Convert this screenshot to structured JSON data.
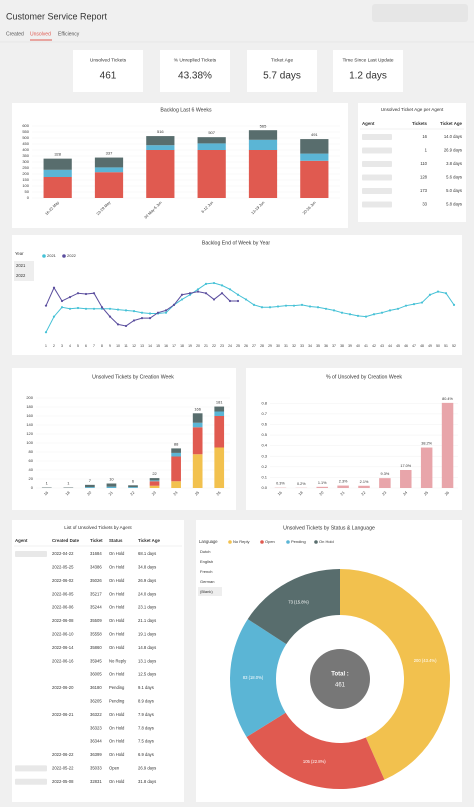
{
  "header": {
    "title": "Customer Service Report",
    "tabs": [
      "Created",
      "Unsolved",
      "Efficiency"
    ]
  },
  "kpis": [
    {
      "label": "Unsolved Tickets",
      "value": 461
    },
    {
      "label": "% Unreplied Tickets",
      "value": "43.38%"
    },
    {
      "label": "Ticket Age",
      "value": "5.7 days"
    },
    {
      "label": "Time Since Last Update",
      "value": "1.2 days"
    }
  ],
  "chart_data": [
    {
      "type": "stacked-bar",
      "title": "Backlog Last 6 Weeks",
      "categories": [
        "16-22 May",
        "23-29 May",
        "30 May-5 Jun",
        "6-12 Jun",
        "13-19 Jun",
        "20-26 Jun"
      ],
      "series": [
        {
          "color": "#e05a50",
          "values": [
            175,
            215,
            400,
            400,
            400,
            310
          ]
        },
        {
          "color": "#5bb5d5",
          "values": [
            60,
            40,
            40,
            55,
            85,
            60
          ]
        },
        {
          "color": "#586d6d",
          "values": [
            93,
            82,
            76,
            52,
            80,
            121
          ]
        }
      ],
      "totals": [
        328,
        337,
        516,
        507,
        565,
        491
      ],
      "ylim": [
        0,
        600
      ],
      "yticks": [
        0,
        50,
        100,
        150,
        200,
        250,
        300,
        350,
        400,
        450,
        500,
        550,
        600
      ],
      "grid": true
    },
    {
      "type": "line",
      "title": "Backlog End of Week by Year",
      "filter": {
        "label": "Year",
        "options": [
          "2021",
          "2022"
        ]
      },
      "categories": [
        "1",
        "2",
        "3",
        "4",
        "5",
        "6",
        "7",
        "8",
        "9",
        "10",
        "11",
        "12",
        "13",
        "14",
        "15",
        "16",
        "17",
        "18",
        "19",
        "20",
        "21",
        "22",
        "23",
        "24",
        "25",
        "26",
        "27",
        "28",
        "29",
        "30",
        "31",
        "32",
        "33",
        "34",
        "35",
        "36",
        "37",
        "38",
        "39",
        "40",
        "41",
        "42",
        "43",
        "44",
        "45",
        "46",
        "47",
        "48",
        "49",
        "50",
        "51",
        "52"
      ],
      "series": [
        {
          "name": "2021",
          "color": "#45c1d6",
          "values": [
            10,
            30,
            42,
            40,
            41,
            40,
            40,
            40,
            40,
            39,
            38,
            37,
            35,
            34,
            34,
            35,
            45,
            52,
            58,
            65,
            72,
            73,
            70,
            65,
            58,
            52,
            45,
            42,
            42,
            43,
            44,
            44,
            45,
            43,
            42,
            40,
            38,
            35,
            33,
            31,
            30,
            33,
            35,
            38,
            40,
            44,
            46,
            48,
            58,
            62,
            60,
            45
          ]
        },
        {
          "name": "2022",
          "color": "#5b4e9e",
          "values": [
            44,
            67,
            50,
            55,
            60,
            59,
            60,
            42,
            30,
            20,
            18,
            25,
            28,
            28,
            35,
            38,
            45,
            58,
            60,
            62,
            60,
            52,
            60,
            50,
            50,
            null,
            null,
            null,
            null,
            null,
            null,
            null,
            null,
            null,
            null,
            null,
            null,
            null,
            null,
            null,
            null,
            null,
            null,
            null,
            null,
            null,
            null,
            null,
            null,
            null,
            null,
            null
          ]
        }
      ],
      "ylim": [
        0,
        100
      ]
    },
    {
      "type": "stacked-bar",
      "title": "Unsolved Tickets by Creation Week",
      "categories": [
        "16",
        "18",
        "20",
        "21",
        "22",
        "23",
        "24",
        "25",
        "26"
      ],
      "series": [
        {
          "color": "#f2c14e",
          "values": [
            0,
            0,
            0,
            0,
            0,
            5,
            15,
            75,
            90
          ]
        },
        {
          "color": "#e05a50",
          "values": [
            0,
            0,
            0,
            0,
            0,
            10,
            55,
            60,
            70
          ]
        },
        {
          "color": "#5bb5d5",
          "values": [
            0,
            0,
            2,
            3,
            2,
            2,
            8,
            10,
            10
          ]
        },
        {
          "color": "#586d6d",
          "values": [
            1,
            1,
            5,
            7,
            4,
            5,
            10,
            21,
            11
          ]
        }
      ],
      "totals": [
        1,
        1,
        7,
        10,
        6,
        22,
        88,
        166,
        181
      ],
      "ylim": [
        0,
        200
      ],
      "yticks": [
        0,
        20,
        40,
        60,
        80,
        100,
        120,
        140,
        160,
        180,
        200
      ],
      "grid": true
    },
    {
      "type": "bar",
      "title": "% of Unsolved by Creation Week",
      "categories": [
        "16",
        "18",
        "20",
        "21",
        "22",
        "23",
        "24",
        "25",
        "26"
      ],
      "color": "#e8a5aa",
      "values": [
        0.003,
        0.002,
        0.011,
        0.023,
        0.021,
        0.093,
        0.17,
        0.382,
        0.804
      ],
      "value_labels": [
        "0.3%",
        "0.2%",
        "1.1%",
        "2.3%",
        "2.1%",
        "9.3%",
        "17.0%",
        "38.2%",
        "80.4%"
      ],
      "ylim": [
        0,
        0.85
      ],
      "yticks": [
        {
          "value": 0,
          "label": "0.0"
        },
        0.1,
        0.2,
        0.3,
        0.4,
        0.5,
        0.6,
        0.7,
        0.8
      ],
      "grid": true
    },
    {
      "type": "donut",
      "title": "Unsolved Tickets by Status & Language",
      "filter": {
        "label": "Language",
        "options": [
          "Dutch",
          "English",
          "French",
          "German",
          "(Blank)"
        ]
      },
      "categories": [
        "No Reply",
        "Open",
        "Pending",
        "On Hold"
      ],
      "values": [
        200,
        105,
        83,
        73
      ],
      "value_labels": [
        "200 (43.4%)",
        "105 (22.8%)",
        "83 (18.0%)",
        "73 (15.8%)"
      ],
      "colors": [
        "#f2c14e",
        "#e05a50",
        "#5bb5d5",
        "#586d6d"
      ],
      "center_label": "Total :",
      "total": 461
    }
  ],
  "agent_age_table": {
    "title": "Unsolved Ticket Age per Agent",
    "columns": [
      "Agent",
      "Tickets",
      "Ticket Age"
    ],
    "rows": [
      [
        16,
        "14.0 days"
      ],
      [
        1,
        "26.9 days"
      ],
      [
        110,
        "3.8 days"
      ],
      [
        128,
        "5.6 days"
      ],
      [
        173,
        "5.0 days"
      ],
      [
        33,
        "5.8 days"
      ]
    ]
  },
  "ticket_table": {
    "title": "List of Unsolved Tickets by Agent",
    "columns": [
      "Agent",
      "Created Date",
      "Ticket",
      "Status",
      "Ticket Age"
    ],
    "rows": [
      [
        "2022-04-22",
        31684,
        "On Hold",
        "68.1 days"
      ],
      [
        "2022-05-25",
        34386,
        "On Hold",
        "34.8 days"
      ],
      [
        "2022-06-02",
        35026,
        "On Hold",
        "26.9 days"
      ],
      [
        "2022-06-05",
        35217,
        "On Hold",
        "24.0 days"
      ],
      [
        "2022-06-06",
        35244,
        "On Hold",
        "23.1 days"
      ],
      [
        "2022-06-08",
        35509,
        "On Hold",
        "21.1 days"
      ],
      [
        "2022-06-10",
        35558,
        "On Hold",
        "19.1 days"
      ],
      [
        "2022-06-14",
        35860,
        "On Hold",
        "14.8 days"
      ],
      [
        "2022-06-16",
        35945,
        "No Reply",
        "13.1 days"
      ],
      [
        null,
        36005,
        "On Hold",
        "12.5 days"
      ],
      [
        "2022-06-20",
        36180,
        "Pending",
        "9.1 days"
      ],
      [
        null,
        36205,
        "Pending",
        "8.9 days"
      ],
      [
        "2022-06-21",
        36322,
        "On Hold",
        "7.9 days"
      ],
      [
        null,
        36323,
        "On Hold",
        "7.8 days"
      ],
      [
        null,
        36344,
        "On Hold",
        "7.5 days"
      ],
      [
        "2022-06-22",
        36399,
        "On Hold",
        "6.9 days"
      ],
      [
        "2022-05-22",
        35033,
        "Open",
        "26.9 days"
      ],
      [
        "2022-05-08",
        32831,
        "On Hold",
        "31.8 days"
      ]
    ]
  }
}
